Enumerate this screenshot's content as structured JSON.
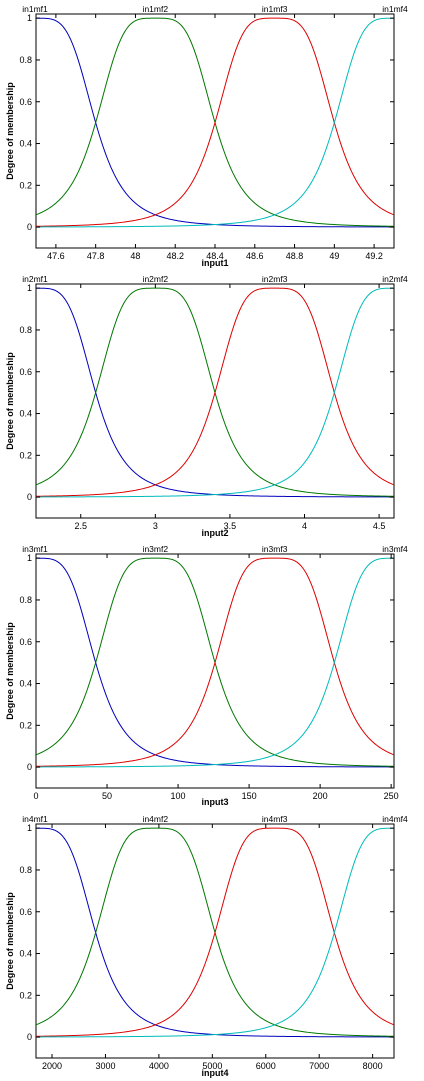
{
  "chart_data": [
    {
      "type": "line",
      "xlabel": "input1",
      "ylabel": "Degree of membership",
      "xlim": [
        47.5,
        49.3
      ],
      "ylim": [
        -0.1,
        1.02
      ],
      "xticks": [
        "47.6",
        "47.8",
        "48",
        "48.2",
        "48.4",
        "48.6",
        "48.8",
        "49",
        "49.2"
      ],
      "yticks": [
        "0",
        "0.2",
        "0.4",
        "0.6",
        "0.8",
        "1"
      ],
      "mf_type": "gbellmf",
      "series": [
        {
          "name": "in1mf1",
          "color": "#0000bb",
          "a": 0.3,
          "b": 2,
          "c": 47.5
        },
        {
          "name": "in1mf2",
          "color": "#007700",
          "a": 0.3,
          "b": 2,
          "c": 48.1
        },
        {
          "name": "in1mf3",
          "color": "#dd0000",
          "a": 0.3,
          "b": 2,
          "c": 48.7
        },
        {
          "name": "in1mf4",
          "color": "#00bbbb",
          "a": 0.3,
          "b": 2,
          "c": 49.3
        }
      ]
    },
    {
      "type": "line",
      "xlabel": "input2",
      "ylabel": "Degree of membership",
      "xlim": [
        2.2,
        4.6
      ],
      "ylim": [
        -0.1,
        1.02
      ],
      "xticks": [
        "2.5",
        "3",
        "3.5",
        "4",
        "4.5"
      ],
      "yticks": [
        "0",
        "0.2",
        "0.4",
        "0.6",
        "0.8",
        "1"
      ],
      "mf_type": "gbellmf",
      "series": [
        {
          "name": "in2mf1",
          "color": "#0000bb",
          "a": 0.4,
          "b": 2,
          "c": 2.2
        },
        {
          "name": "in2mf2",
          "color": "#007700",
          "a": 0.4,
          "b": 2,
          "c": 3.0
        },
        {
          "name": "in2mf3",
          "color": "#dd0000",
          "a": 0.4,
          "b": 2,
          "c": 3.8
        },
        {
          "name": "in2mf4",
          "color": "#00bbbb",
          "a": 0.4,
          "b": 2,
          "c": 4.6
        }
      ]
    },
    {
      "type": "line",
      "xlabel": "input3",
      "ylabel": "Degree of membership",
      "xlim": [
        0,
        252
      ],
      "ylim": [
        -0.1,
        1.02
      ],
      "xticks": [
        "0",
        "50",
        "100",
        "150",
        "200",
        "250"
      ],
      "yticks": [
        "0",
        "0.2",
        "0.4",
        "0.6",
        "0.8",
        "1"
      ],
      "mf_type": "gbellmf",
      "series": [
        {
          "name": "in3mf1",
          "color": "#0000bb",
          "a": 42,
          "b": 2,
          "c": 0
        },
        {
          "name": "in3mf2",
          "color": "#007700",
          "a": 42,
          "b": 2,
          "c": 84
        },
        {
          "name": "in3mf3",
          "color": "#dd0000",
          "a": 42,
          "b": 2,
          "c": 168
        },
        {
          "name": "in3mf4",
          "color": "#00bbbb",
          "a": 42,
          "b": 2,
          "c": 252
        }
      ]
    },
    {
      "type": "line",
      "xlabel": "input4",
      "ylabel": "Degree of membership",
      "xlim": [
        1700,
        8400
      ],
      "ylim": [
        -0.1,
        1.02
      ],
      "xticks": [
        "2000",
        "3000",
        "4000",
        "5000",
        "6000",
        "7000",
        "8000"
      ],
      "yticks": [
        "0",
        "0.2",
        "0.4",
        "0.6",
        "0.8",
        "1"
      ],
      "mf_type": "gbellmf",
      "series": [
        {
          "name": "in4mf1",
          "color": "#0000bb",
          "a": 1116.7,
          "b": 2,
          "c": 1700
        },
        {
          "name": "in4mf2",
          "color": "#007700",
          "a": 1116.7,
          "b": 2,
          "c": 3933.3
        },
        {
          "name": "in4mf3",
          "color": "#dd0000",
          "a": 1116.7,
          "b": 2,
          "c": 6166.7
        },
        {
          "name": "in4mf4",
          "color": "#00bbbb",
          "a": 1116.7,
          "b": 2,
          "c": 8400
        }
      ]
    }
  ]
}
